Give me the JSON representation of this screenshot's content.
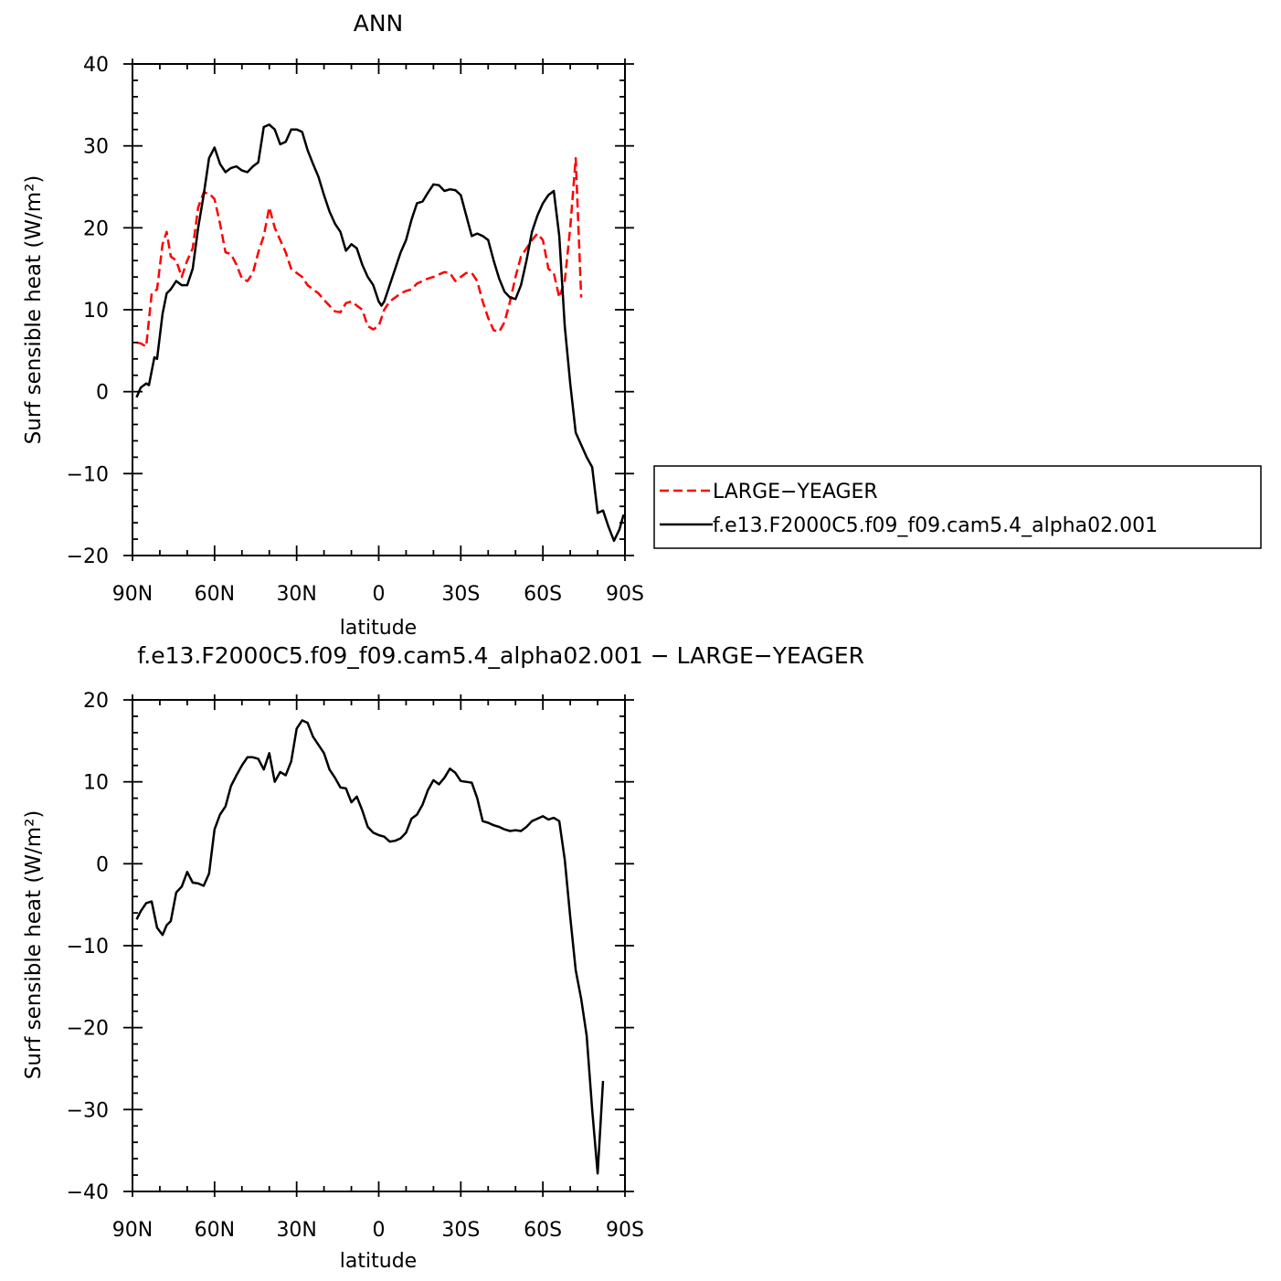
{
  "colors": {
    "axis": "#000000",
    "model": "#000000",
    "obs": "#ff0000",
    "background": "#ffffff"
  },
  "chart_data": [
    {
      "type": "line",
      "title": "ANN",
      "xlabel": "latitude",
      "ylabel": "Surf sensible heat (W/m²)",
      "xlim": [
        -90,
        90
      ],
      "ylim": [
        -20,
        40
      ],
      "x_ticks": [
        -90,
        -60,
        -30,
        0,
        30,
        60,
        90
      ],
      "x_tick_labels": [
        "90N",
        "60N",
        "30N",
        "0",
        "30S",
        "60S",
        "90S"
      ],
      "y_ticks": [
        -20,
        -10,
        0,
        10,
        20,
        30,
        40
      ],
      "y_tick_labels": [
        "−20",
        "−10",
        "0",
        "10",
        "20",
        "30",
        "40"
      ],
      "grid": false,
      "legend": {
        "placement": "right",
        "entries": [
          "LARGE−YEAGER",
          "f.e13.F2000C5.f09_f09.cam5.4_alpha02.001"
        ]
      },
      "series": [
        {
          "name": "LARGE−YEAGER",
          "style": "dashed",
          "color": "#ff0000",
          "points": [
            [
              -88.5,
              6.0
            ],
            [
              -87,
              5.9
            ],
            [
              -85,
              5.5
            ],
            [
              -83,
              12.0
            ],
            [
              -81,
              12.5
            ],
            [
              -79,
              18.0
            ],
            [
              -77.5,
              19.5
            ],
            [
              -76,
              16.5
            ],
            [
              -74,
              16.0
            ],
            [
              -72,
              14.0
            ],
            [
              -70,
              16.0
            ],
            [
              -68,
              17.5
            ],
            [
              -66,
              22.5
            ],
            [
              -64,
              24.3
            ],
            [
              -62,
              24.2
            ],
            [
              -60,
              23.5
            ],
            [
              -58,
              20.5
            ],
            [
              -56,
              17.0
            ],
            [
              -54,
              16.8
            ],
            [
              -52,
              15.5
            ],
            [
              -50,
              13.8
            ],
            [
              -48,
              13.5
            ],
            [
              -46,
              14.5
            ],
            [
              -44,
              17.0
            ],
            [
              -42,
              19.0
            ],
            [
              -40,
              22.5
            ],
            [
              -38,
              20.0
            ],
            [
              -36,
              18.5
            ],
            [
              -34,
              17.0
            ],
            [
              -32,
              15.0
            ],
            [
              -30,
              14.5
            ],
            [
              -28,
              14.0
            ],
            [
              -26,
              13.0
            ],
            [
              -24,
              12.5
            ],
            [
              -22,
              12.0
            ],
            [
              -20,
              11.2
            ],
            [
              -18,
              10.5
            ],
            [
              -16,
              9.8
            ],
            [
              -14,
              9.7
            ],
            [
              -12,
              10.8
            ],
            [
              -10,
              11.0
            ],
            [
              -8,
              10.5
            ],
            [
              -6,
              10.0
            ],
            [
              -4,
              8.0
            ],
            [
              -2,
              7.6
            ],
            [
              0,
              8.0
            ],
            [
              2,
              10.0
            ],
            [
              4,
              11.0
            ],
            [
              6,
              11.5
            ],
            [
              8,
              12.0
            ],
            [
              10,
              12.3
            ],
            [
              12,
              12.5
            ],
            [
              14,
              13.2
            ],
            [
              16,
              13.5
            ],
            [
              18,
              13.8
            ],
            [
              20,
              14.0
            ],
            [
              22,
              14.3
            ],
            [
              24,
              14.6
            ],
            [
              26,
              14.5
            ],
            [
              28,
              13.5
            ],
            [
              30,
              14.0
            ],
            [
              32,
              14.5
            ],
            [
              34,
              14.5
            ],
            [
              36,
              13.5
            ],
            [
              38,
              11.0
            ],
            [
              40,
              9.0
            ],
            [
              42,
              7.5
            ],
            [
              44,
              7.3
            ],
            [
              46,
              8.5
            ],
            [
              48,
              11.0
            ],
            [
              50,
              14.0
            ],
            [
              52,
              16.5
            ],
            [
              54,
              17.5
            ],
            [
              56,
              18.5
            ],
            [
              58,
              19.3
            ],
            [
              60,
              18.5
            ],
            [
              62,
              15.0
            ],
            [
              64,
              14.5
            ],
            [
              66,
              11.5
            ],
            [
              68,
              13.5
            ],
            [
              70,
              20.0
            ],
            [
              72,
              28.5
            ],
            [
              74,
              11.5
            ]
          ]
        },
        {
          "name": "f.e13.F2000C5.f09_f09.cam5.4_alpha02.001",
          "style": "solid",
          "color": "#000000",
          "points": [
            [
              -88.5,
              -0.7
            ],
            [
              -87,
              0.5
            ],
            [
              -85,
              1.0
            ],
            [
              -84,
              0.8
            ],
            [
              -82,
              4.2
            ],
            [
              -81,
              4.0
            ],
            [
              -79,
              9.5
            ],
            [
              -77.5,
              12.0
            ],
            [
              -76,
              12.5
            ],
            [
              -74,
              13.5
            ],
            [
              -72,
              13.0
            ],
            [
              -70,
              13.0
            ],
            [
              -68,
              15.0
            ],
            [
              -66,
              20.0
            ],
            [
              -64,
              24.0
            ],
            [
              -62,
              28.5
            ],
            [
              -60,
              29.8
            ],
            [
              -58,
              27.8
            ],
            [
              -56,
              26.8
            ],
            [
              -54,
              27.3
            ],
            [
              -52,
              27.5
            ],
            [
              -50,
              27.0
            ],
            [
              -48,
              26.8
            ],
            [
              -46,
              27.5
            ],
            [
              -44,
              28.0
            ],
            [
              -42,
              32.3
            ],
            [
              -40,
              32.6
            ],
            [
              -38,
              32.0
            ],
            [
              -36,
              30.2
            ],
            [
              -34,
              30.5
            ],
            [
              -32,
              32.0
            ],
            [
              -30,
              32.0
            ],
            [
              -28,
              31.7
            ],
            [
              -26,
              29.5
            ],
            [
              -24,
              27.8
            ],
            [
              -22,
              26.2
            ],
            [
              -20,
              24.0
            ],
            [
              -18,
              22.0
            ],
            [
              -16,
              20.5
            ],
            [
              -14,
              19.5
            ],
            [
              -12,
              17.2
            ],
            [
              -10,
              18.0
            ],
            [
              -8,
              17.5
            ],
            [
              -6,
              15.5
            ],
            [
              -4,
              14.0
            ],
            [
              -2,
              13.0
            ],
            [
              0,
              11.0
            ],
            [
              1,
              10.5
            ],
            [
              2,
              11.0
            ],
            [
              4,
              13.0
            ],
            [
              6,
              15.0
            ],
            [
              8,
              17.0
            ],
            [
              10,
              18.5
            ],
            [
              12,
              21.0
            ],
            [
              14,
              23.0
            ],
            [
              16,
              23.2
            ],
            [
              18,
              24.3
            ],
            [
              20,
              25.3
            ],
            [
              22,
              25.2
            ],
            [
              24,
              24.5
            ],
            [
              26,
              24.7
            ],
            [
              28,
              24.6
            ],
            [
              30,
              24.0
            ],
            [
              32,
              21.5
            ],
            [
              34,
              19.0
            ],
            [
              36,
              19.3
            ],
            [
              38,
              19.0
            ],
            [
              40,
              18.5
            ],
            [
              42,
              16.0
            ],
            [
              44,
              13.8
            ],
            [
              46,
              12.2
            ],
            [
              48,
              11.5
            ],
            [
              50,
              11.3
            ],
            [
              52,
              13.0
            ],
            [
              54,
              16.0
            ],
            [
              56,
              19.5
            ],
            [
              58,
              21.5
            ],
            [
              60,
              23.0
            ],
            [
              62,
              24.0
            ],
            [
              64,
              24.5
            ],
            [
              66,
              19.0
            ],
            [
              68,
              8.0
            ],
            [
              70,
              1.0
            ],
            [
              72,
              -5.0
            ],
            [
              74,
              -6.5
            ],
            [
              76,
              -8.0
            ],
            [
              78,
              -9.2
            ],
            [
              80,
              -14.8
            ],
            [
              82,
              -14.5
            ],
            [
              84,
              -16.5
            ],
            [
              86,
              -18.2
            ],
            [
              88,
              -16.8
            ],
            [
              89.5,
              -15.0
            ]
          ]
        }
      ]
    },
    {
      "type": "line",
      "title": "f.e13.F2000C5.f09_f09.cam5.4_alpha02.001  −  LARGE−YEAGER",
      "xlabel": "latitude",
      "ylabel": "Surf sensible heat (W/m²)",
      "xlim": [
        -90,
        90
      ],
      "ylim": [
        -40,
        20
      ],
      "x_ticks": [
        -90,
        -60,
        -30,
        0,
        30,
        60,
        90
      ],
      "x_tick_labels": [
        "90N",
        "60N",
        "30N",
        "0",
        "30S",
        "60S",
        "90S"
      ],
      "y_ticks": [
        -40,
        -30,
        -20,
        -10,
        0,
        10,
        20
      ],
      "y_tick_labels": [
        "−40",
        "−30",
        "−20",
        "−10",
        "0",
        "10",
        "20"
      ],
      "grid": false,
      "series": [
        {
          "style": "solid",
          "color": "#000000",
          "points": [
            [
              -88.5,
              -6.8
            ],
            [
              -87,
              -5.8
            ],
            [
              -85,
              -4.8
            ],
            [
              -83,
              -4.6
            ],
            [
              -81,
              -7.8
            ],
            [
              -79,
              -8.7
            ],
            [
              -77.5,
              -7.5
            ],
            [
              -76,
              -7.0
            ],
            [
              -74,
              -3.5
            ],
            [
              -72,
              -2.8
            ],
            [
              -70,
              -1.0
            ],
            [
              -68,
              -2.3
            ],
            [
              -66,
              -2.4
            ],
            [
              -64,
              -2.7
            ],
            [
              -62,
              -1.2
            ],
            [
              -60,
              4.2
            ],
            [
              -58,
              6.0
            ],
            [
              -56,
              7.0
            ],
            [
              -54,
              9.5
            ],
            [
              -52,
              10.8
            ],
            [
              -50,
              12.0
            ],
            [
              -48,
              13.0
            ],
            [
              -46,
              13.0
            ],
            [
              -44,
              12.8
            ],
            [
              -42,
              11.5
            ],
            [
              -40,
              13.5
            ],
            [
              -38,
              10.0
            ],
            [
              -36,
              11.2
            ],
            [
              -34,
              10.8
            ],
            [
              -32,
              12.5
            ],
            [
              -30,
              16.5
            ],
            [
              -28,
              17.5
            ],
            [
              -26,
              17.2
            ],
            [
              -24,
              15.5
            ],
            [
              -22,
              14.5
            ],
            [
              -20,
              13.5
            ],
            [
              -18,
              11.5
            ],
            [
              -16,
              10.5
            ],
            [
              -14,
              9.3
            ],
            [
              -12,
              9.2
            ],
            [
              -10,
              7.5
            ],
            [
              -8,
              8.2
            ],
            [
              -6,
              6.5
            ],
            [
              -4,
              4.5
            ],
            [
              -2,
              3.8
            ],
            [
              0,
              3.5
            ],
            [
              2,
              3.3
            ],
            [
              4,
              2.7
            ],
            [
              6,
              2.8
            ],
            [
              8,
              3.1
            ],
            [
              10,
              3.8
            ],
            [
              12,
              5.5
            ],
            [
              14,
              6.0
            ],
            [
              16,
              7.2
            ],
            [
              18,
              9.0
            ],
            [
              20,
              10.2
            ],
            [
              22,
              9.7
            ],
            [
              24,
              10.5
            ],
            [
              26,
              11.6
            ],
            [
              28,
              11.1
            ],
            [
              30,
              10.1
            ],
            [
              32,
              10.0
            ],
            [
              34,
              9.9
            ],
            [
              36,
              8.0
            ],
            [
              38,
              5.2
            ],
            [
              40,
              5.0
            ],
            [
              42,
              4.7
            ],
            [
              44,
              4.5
            ],
            [
              46,
              4.2
            ],
            [
              48,
              4.0
            ],
            [
              50,
              4.1
            ],
            [
              52,
              4.0
            ],
            [
              54,
              4.5
            ],
            [
              56,
              5.2
            ],
            [
              58,
              5.5
            ],
            [
              60,
              5.8
            ],
            [
              62,
              5.4
            ],
            [
              64,
              5.6
            ],
            [
              66,
              5.2
            ],
            [
              68,
              0.5
            ],
            [
              70,
              -6.5
            ],
            [
              72,
              -13.0
            ],
            [
              74,
              -16.5
            ],
            [
              76,
              -21.0
            ],
            [
              78,
              -30.0
            ],
            [
              80,
              -37.8
            ],
            [
              82,
              -26.5
            ]
          ]
        }
      ]
    }
  ]
}
